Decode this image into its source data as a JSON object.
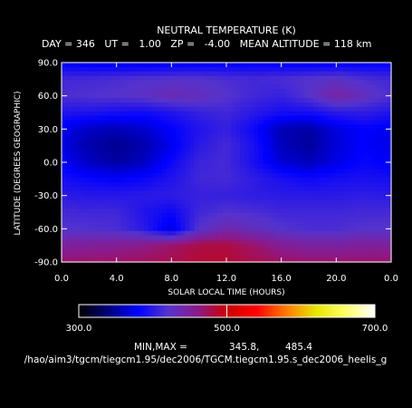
{
  "chart_data": {
    "type": "heatmap",
    "title": "NEUTRAL TEMPERATURE (K)",
    "subtitle": "DAY = 346   UT =   1.00   ZP =   -4.00   MEAN ALTITUDE = 118 km",
    "xlabel": "SOLAR LOCAL TIME (HOURS)",
    "ylabel": "LATITUDE (DEGREES GEOGRAPHIC)",
    "xlim": [
      0,
      24
    ],
    "ylim": [
      -90,
      90
    ],
    "x_ticks": [
      "0.0",
      "4.0",
      "8.0",
      "12.0",
      "16.0",
      "20.0",
      "0.0"
    ],
    "x_tick_values": [
      0,
      4,
      8,
      12,
      16,
      20,
      24
    ],
    "y_ticks": [
      "90.0",
      "60.0",
      "30.0",
      "0.0",
      "-30.0",
      "-60.0",
      "-90.0"
    ],
    "y_tick_values": [
      90,
      60,
      30,
      0,
      -30,
      -60,
      -90
    ],
    "colorbar": {
      "min": 300,
      "max": 700,
      "tick_labels": [
        "300.0",
        "500.0",
        "700.0"
      ],
      "tick_values": [
        300,
        500,
        700
      ],
      "colors": [
        "#000000",
        "#00007a",
        "#0000ff",
        "#5533cc",
        "#8b1a8b",
        "#cc0000",
        "#ff0000",
        "#ff7a00",
        "#e6e600",
        "#ffff66",
        "#ffffff"
      ]
    },
    "minmax_label": "MIN,MAX =",
    "min_value": "345.8,",
    "max_value": "485.4",
    "field_grid": {
      "lat": [
        90,
        75,
        60,
        45,
        30,
        15,
        0,
        -15,
        -30,
        -45,
        -60,
        -75,
        -90
      ],
      "lt": [
        0,
        2,
        4,
        6,
        8,
        10,
        12,
        14,
        16,
        18,
        20,
        22,
        24
      ],
      "temperature": [
        [
          378,
          375,
          372,
          372,
          374,
          376,
          378,
          378,
          376,
          374,
          376,
          378,
          378
        ],
        [
          410,
          412,
          415,
          418,
          420,
          420,
          415,
          412,
          415,
          420,
          425,
          415,
          410
        ],
        [
          415,
          418,
          420,
          425,
          435,
          430,
          420,
          410,
          405,
          420,
          445,
          430,
          415
        ],
        [
          395,
          395,
          390,
          388,
          395,
          405,
          410,
          400,
          390,
          390,
          400,
          402,
          395
        ],
        [
          375,
          362,
          358,
          365,
          380,
          395,
          405,
          385,
          358,
          352,
          370,
          380,
          375
        ],
        [
          372,
          355,
          346,
          355,
          375,
          400,
          412,
          392,
          360,
          350,
          368,
          380,
          372
        ],
        [
          378,
          362,
          352,
          362,
          385,
          408,
          412,
          392,
          368,
          360,
          372,
          384,
          378
        ],
        [
          390,
          384,
          380,
          384,
          395,
          410,
          412,
          402,
          392,
          386,
          390,
          392,
          390
        ],
        [
          400,
          398,
          398,
          400,
          402,
          405,
          405,
          402,
          400,
          400,
          400,
          402,
          400
        ],
        [
          412,
          410,
          410,
          395,
          385,
          410,
          418,
          415,
          410,
          410,
          410,
          412,
          412
        ],
        [
          420,
          418,
          415,
          400,
          370,
          420,
          440,
          430,
          420,
          415,
          415,
          420,
          420
        ],
        [
          450,
          452,
          455,
          460,
          470,
          480,
          482,
          470,
          455,
          448,
          448,
          452,
          450
        ],
        [
          470,
          470,
          472,
          474,
          478,
          485,
          485,
          478,
          472,
          470,
          470,
          470,
          470
        ]
      ]
    }
  },
  "footer": {
    "file_path": "/hao/aim3/tgcm/tiegcm1.95/dec2006/TGCM.tiegcm1.95.s_dec2006_heelis_g"
  },
  "colors": {
    "background": "#000000",
    "foreground": "#ffffff"
  }
}
